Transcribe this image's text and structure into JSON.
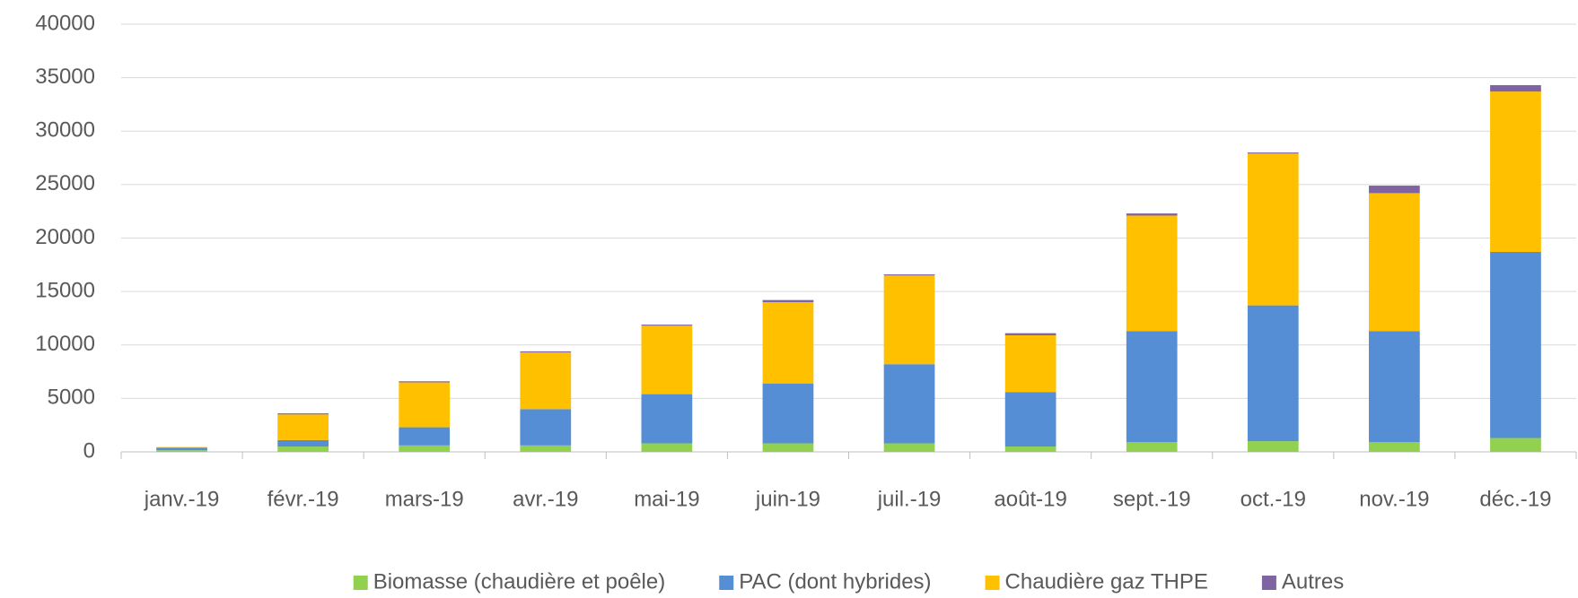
{
  "chart_data": {
    "type": "bar",
    "stacked": true,
    "categories": [
      "janv.-19",
      "févr.-19",
      "mars-19",
      "avr.-19",
      "mai-19",
      "juin-19",
      "juil.-19",
      "août-19",
      "sept.-19",
      "oct.-19",
      "nov.-19",
      "déc.-19"
    ],
    "series": [
      {
        "name": "Biomasse (chaudière et poêle)",
        "color": "#92d050",
        "values": [
          150,
          500,
          600,
          600,
          800,
          800,
          800,
          500,
          900,
          1000,
          900,
          1300
        ]
      },
      {
        "name": "PAC (dont hybrides)",
        "color": "#558ed5",
        "values": [
          250,
          600,
          1700,
          3400,
          4600,
          5600,
          7400,
          5100,
          10400,
          12700,
          10400,
          17400
        ]
      },
      {
        "name": "Chaudière gaz THPE",
        "color": "#ffc000",
        "values": [
          50,
          2400,
          4200,
          5300,
          6400,
          7600,
          8300,
          5300,
          10800,
          14200,
          12900,
          15000
        ]
      },
      {
        "name": "Autres",
        "color": "#8064a2",
        "values": [
          0,
          100,
          100,
          100,
          100,
          200,
          100,
          200,
          200,
          100,
          700,
          600
        ]
      }
    ],
    "ylim": [
      0,
      40000
    ],
    "yticks": [
      0,
      5000,
      10000,
      15000,
      20000,
      25000,
      30000,
      35000,
      40000
    ],
    "grid": true,
    "legend": "bottom"
  }
}
